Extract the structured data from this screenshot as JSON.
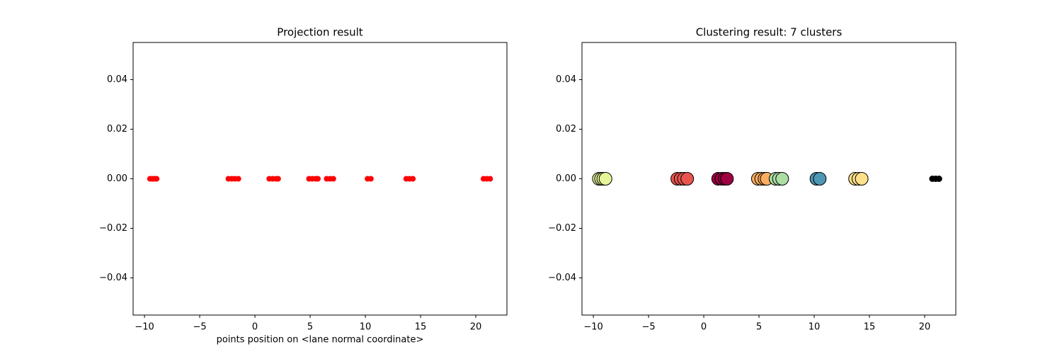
{
  "chart_data": [
    {
      "type": "scatter",
      "title": "Projection result",
      "xlabel": "points position on <lane normal coordinate>",
      "xlim": [
        -11.03,
        22.82
      ],
      "ylim": [
        -0.055,
        0.055
      ],
      "xticks": [
        {
          "value": -10,
          "label": "−10"
        },
        {
          "value": -5,
          "label": "−5"
        },
        0,
        5,
        10,
        15,
        20
      ],
      "yticks": [
        {
          "value": -0.04,
          "label": "−0.04"
        },
        {
          "value": -0.02,
          "label": "−0.02"
        },
        {
          "value": 0,
          "label": "0.00"
        },
        {
          "value": 0.02,
          "label": "0.02"
        },
        {
          "value": 0.04,
          "label": "0.04"
        }
      ],
      "series": [
        {
          "color": "#ff0000",
          "edgecolor": "#ff0000",
          "marker_size": 3.5,
          "x": [
            -9.5,
            -9.3,
            -9.1,
            -8.9,
            -2.4,
            -2.1,
            -1.8,
            -1.5,
            1.3,
            1.6,
            1.9,
            2.1,
            4.9,
            5.2,
            5.5,
            5.7,
            6.5,
            6.8,
            7.1,
            10.2,
            10.5,
            13.7,
            14.0,
            14.3,
            20.7,
            21.0,
            21.3
          ],
          "values": [
            0,
            0,
            0,
            0,
            0,
            0,
            0,
            0,
            0,
            0,
            0,
            0,
            0,
            0,
            0,
            0,
            0,
            0,
            0,
            0,
            0,
            0,
            0,
            0,
            0,
            0,
            0
          ]
        }
      ]
    },
    {
      "type": "scatter",
      "title": "Clustering result: 7 clusters",
      "xlim": [
        -11.03,
        22.82
      ],
      "ylim": [
        -0.055,
        0.055
      ],
      "xticks": [
        {
          "value": -10,
          "label": "−10"
        },
        {
          "value": -5,
          "label": "−5"
        },
        0,
        5,
        10,
        15,
        20
      ],
      "yticks": [
        {
          "value": -0.04,
          "label": "−0.04"
        },
        {
          "value": -0.02,
          "label": "−0.02"
        },
        {
          "value": 0,
          "label": "0.00"
        },
        {
          "value": 0.02,
          "label": "0.02"
        },
        {
          "value": 0.04,
          "label": "0.04"
        }
      ],
      "series": [
        {
          "color": "#e6f598",
          "edgecolor": "#000000",
          "marker_size": 9,
          "x": [
            -9.5,
            -9.3,
            -9.1,
            -8.9
          ],
          "values": [
            0,
            0,
            0,
            0
          ]
        },
        {
          "color": "#e8554e",
          "edgecolor": "#000000",
          "marker_size": 9,
          "x": [
            -2.4,
            -2.1,
            -1.8,
            -1.5
          ],
          "values": [
            0,
            0,
            0,
            0
          ]
        },
        {
          "color": "#9e0142",
          "edgecolor": "#000000",
          "marker_size": 9,
          "x": [
            1.3,
            1.6,
            1.9,
            2.1
          ],
          "values": [
            0,
            0,
            0,
            0
          ]
        },
        {
          "color": "#fdae61",
          "edgecolor": "#000000",
          "marker_size": 9,
          "x": [
            4.9,
            5.2,
            5.5,
            5.7
          ],
          "values": [
            0,
            0,
            0,
            0
          ]
        },
        {
          "color": "#abdda4",
          "edgecolor": "#000000",
          "marker_size": 9,
          "x": [
            6.5,
            6.8,
            7.1
          ],
          "values": [
            0,
            0,
            0
          ]
        },
        {
          "color": "#4e98b4",
          "edgecolor": "#000000",
          "marker_size": 9,
          "x": [
            10.2,
            10.5
          ],
          "values": [
            0,
            0
          ]
        },
        {
          "color": "#fee08b",
          "edgecolor": "#000000",
          "marker_size": 9,
          "x": [
            13.7,
            14.0,
            14.3
          ],
          "values": [
            0,
            0,
            0
          ]
        },
        {
          "color": "#000000",
          "edgecolor": "#000000",
          "marker_size": 4,
          "x": [
            20.7,
            21.0,
            21.3
          ],
          "values": [
            0,
            0,
            0
          ]
        }
      ]
    }
  ]
}
